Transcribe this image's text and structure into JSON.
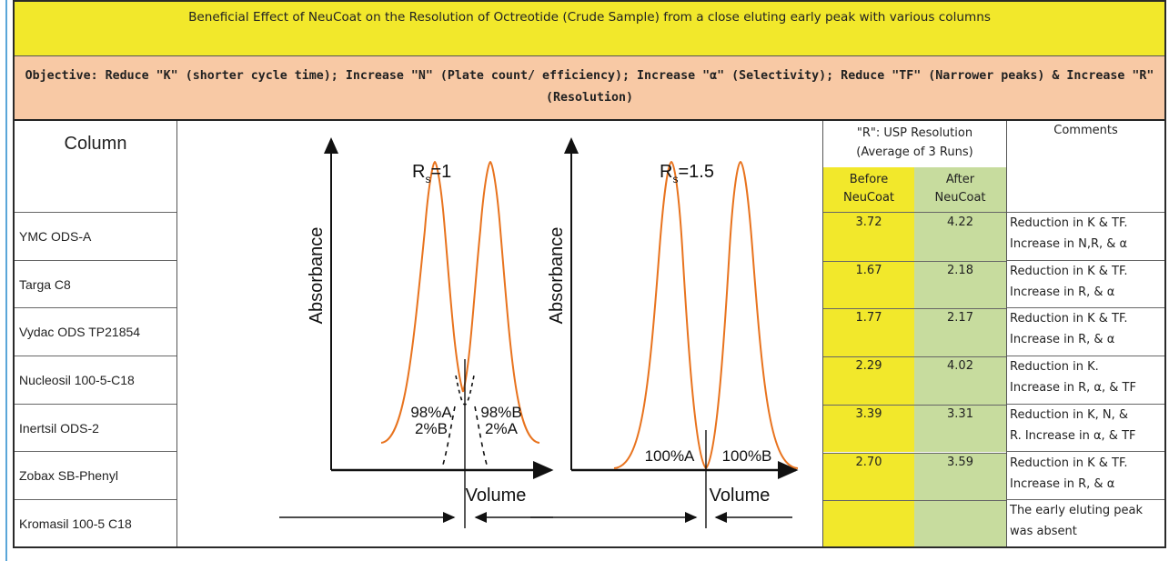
{
  "title": "Beneficial Effect of NeuCoat on the Resolution of Octreotide (Crude Sample) from a close eluting early peak with various columns",
  "objective": {
    "line1": "Objective: Reduce \"K\" (shorter cycle time); Increase \"N\" (Plate count/ efficiency); Increase \"α\" (Selectivity); Reduce \"TF\" (Narrower peaks) & Increase \"R\"",
    "line2": "(Resolution)"
  },
  "column_header": "Column",
  "columns": [
    "YMC ODS-A",
    "Targa C8",
    "Vydac ODS TP21854",
    "Nucleosil 100-5-C18",
    "Inertsil ODS-2",
    "Zobax SB-Phenyl",
    "Kromasil 100-5 C18"
  ],
  "figure": {
    "left": {
      "ylabel": "Absorbance",
      "xlabel": "Volume",
      "rs_label": "R",
      "rs_sub": "s",
      "rs_value": "=1",
      "left_peak_label_1": "98%A",
      "left_peak_label_2": "2%B",
      "right_peak_label_1": "98%B",
      "right_peak_label_2": "2%A"
    },
    "right": {
      "ylabel": "Absorbance",
      "xlabel": "Volume",
      "rs_label": "R",
      "rs_sub": "s",
      "rs_value": "=1.5",
      "left_peak_label": "100%A",
      "right_peak_label": "100%B"
    },
    "curve_color": "#e8731e"
  },
  "resolution_header": {
    "line1": "\"R\": USP Resolution",
    "line2": "(Average of 3 Runs)",
    "before_1": "Before",
    "before_2": "NeuCoat",
    "after_1": "After",
    "after_2": "NeuCoat"
  },
  "comments_header": "Comments",
  "rows": [
    {
      "before": "3.72",
      "after": "4.22",
      "comment_1": "Reduction in K & TF.",
      "comment_2": "Increase in N,R, & α"
    },
    {
      "before": "1.67",
      "after": "2.18",
      "comment_1": "Reduction in K & TF.",
      "comment_2": "Increase in R, & α"
    },
    {
      "before": "1.77",
      "after": "2.17",
      "comment_1": "Reduction in K & TF.",
      "comment_2": "Increase in R, & α"
    },
    {
      "before": "2.29",
      "after": "4.02",
      "comment_1": "Reduction in K.",
      "comment_2": "Increase in R, α, & TF"
    },
    {
      "before": "3.39",
      "after": "3.31",
      "comment_1": "Reduction in K, N, &",
      "comment_2": "R. Increase in α, & TF"
    },
    {
      "before": "2.70",
      "after": "3.59",
      "comment_1": "Reduction in K & TF.",
      "comment_2": "Increase in R, & α"
    },
    {
      "before": "",
      "after": "",
      "comment_1": "The early eluting peak",
      "comment_2": "was absent"
    }
  ],
  "colors": {
    "title_band": "#f2e82b",
    "objective_band": "#f8c9a5",
    "before_fill": "#f2e82b",
    "after_fill": "#c7dc9e",
    "left_rule": "#5aa6d8"
  }
}
